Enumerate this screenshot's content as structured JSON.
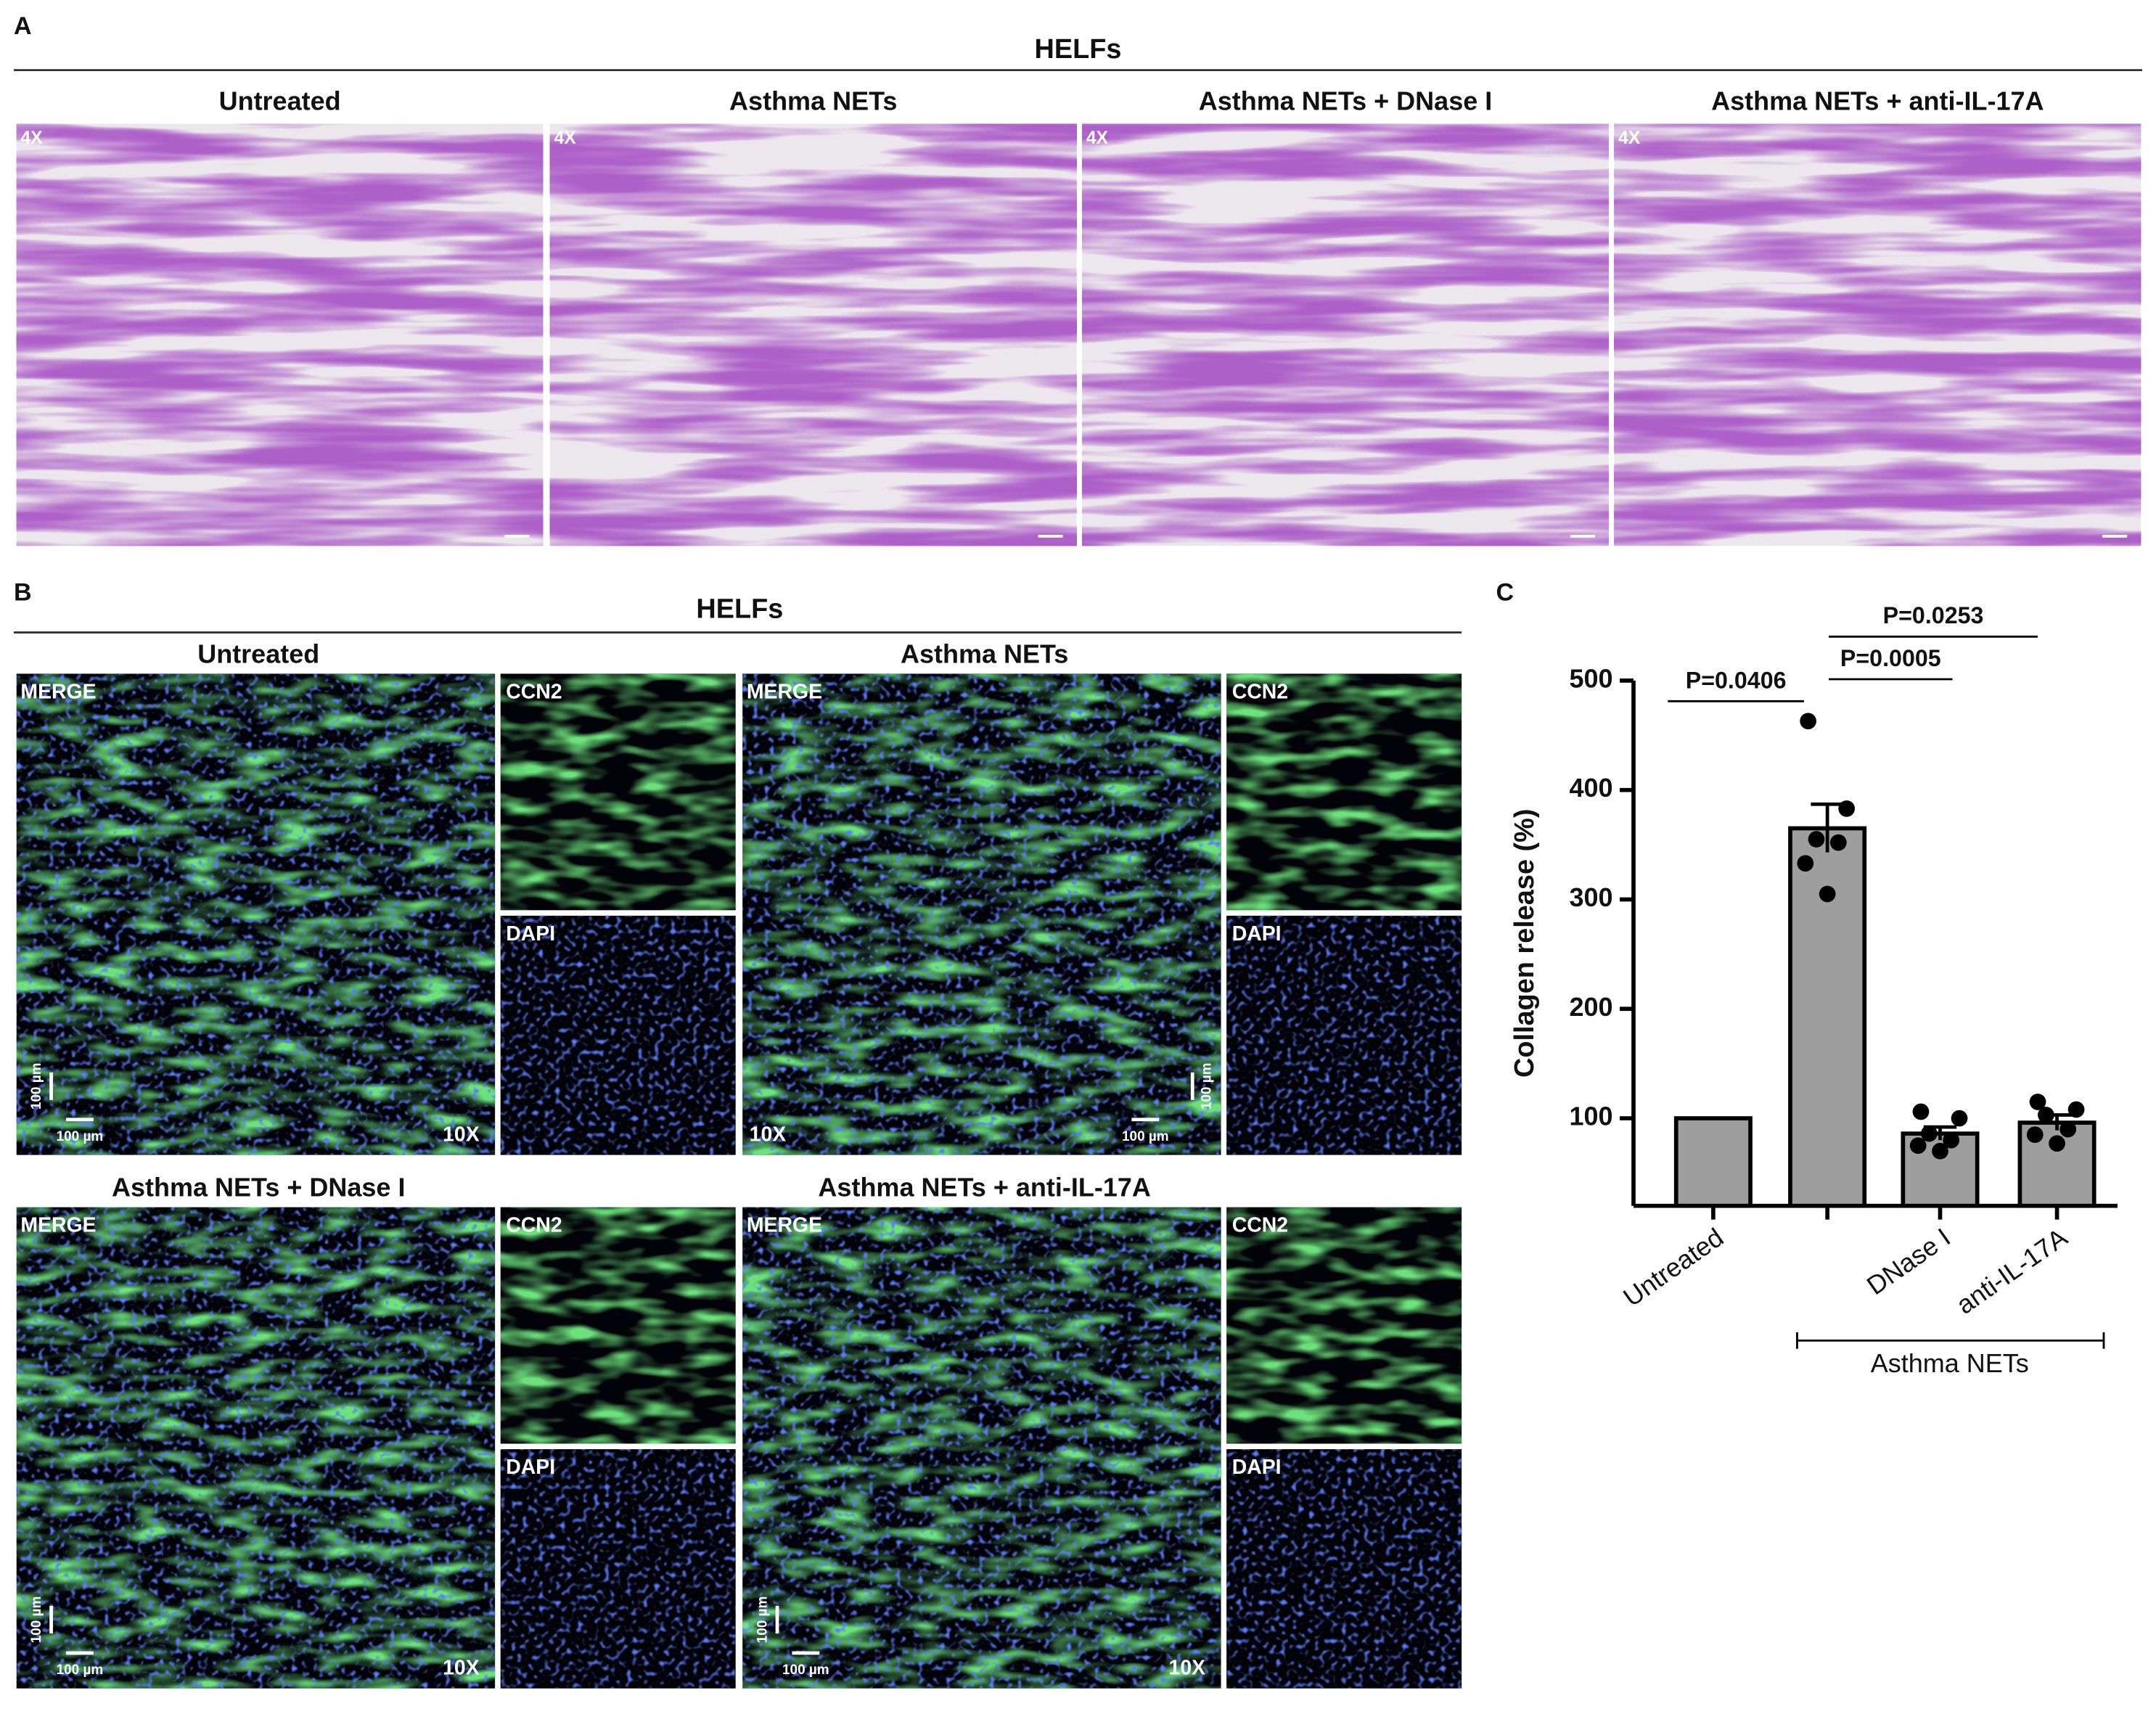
{
  "panel_a": {
    "label": "A",
    "heading": "HELFs",
    "images": [
      {
        "title": "Untreated",
        "magnification": "4X"
      },
      {
        "title": "Asthma NETs",
        "magnification": "4X"
      },
      {
        "title": "Asthma NETs + DNase I",
        "magnification": "4X"
      },
      {
        "title": "Asthma NETs + anti-IL-17A",
        "magnification": "4X"
      }
    ]
  },
  "panel_b": {
    "label": "B",
    "heading": "HELFs",
    "groups": [
      {
        "title": "Untreated",
        "merge": "MERGE",
        "ccn2": "CCN2",
        "dapi": "DAPI",
        "magnification": "10X",
        "scale_vertical": "100 µm",
        "scale_horizontal": "100 µm"
      },
      {
        "title": "Asthma NETs",
        "merge": "MERGE",
        "ccn2": "CCN2",
        "dapi": "DAPI",
        "magnification": "10X",
        "scale_vertical": "100 µm",
        "scale_horizontal": "100 µm"
      },
      {
        "title": "Asthma NETs + DNase I",
        "merge": "MERGE",
        "ccn2": "CCN2",
        "dapi": "DAPI",
        "magnification": "10X",
        "scale_vertical": "100 µm",
        "scale_horizontal": "100 µm"
      },
      {
        "title": "Asthma NETs + anti-IL-17A",
        "merge": "MERGE",
        "ccn2": "CCN2",
        "dapi": "DAPI",
        "magnification": "10X",
        "scale_vertical": "100 µm",
        "scale_horizontal": "100 µm"
      }
    ]
  },
  "chart_data": {
    "type": "bar",
    "panel_label": "C",
    "y_label": "Collagen release (%)",
    "categories": [
      "Untreated",
      null,
      "DNase I",
      "anti-IL-17A"
    ],
    "group_label": "Asthma NETs",
    "values": [
      100,
      365,
      86,
      96
    ],
    "errors": [
      null,
      22,
      6,
      7
    ],
    "points": [
      [],
      [
        463,
        383,
        355,
        352,
        333,
        305
      ],
      [
        106,
        100,
        86,
        80,
        75,
        70
      ],
      [
        115,
        108,
        103,
        90,
        85,
        77
      ]
    ],
    "color": "#9e9e9e",
    "point_color": "#000000",
    "ylim": [
      20,
      500
    ],
    "yticks": [
      100,
      200,
      300,
      400,
      500
    ],
    "annotations": [
      "P=0.0406",
      "P=0.0005",
      "P=0.0253"
    ]
  }
}
